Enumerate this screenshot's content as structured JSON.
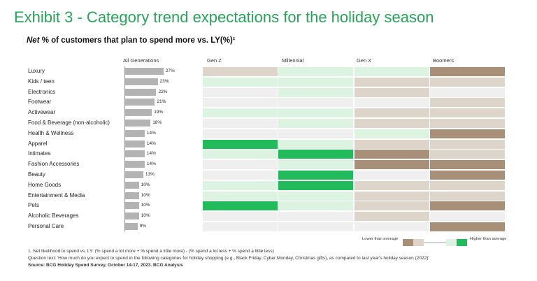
{
  "title": "Exhibit 3 - Category trend expectations for the holiday season",
  "subtitle_emphasis": "Net",
  "subtitle_rest": "% of customers that plan to spend more vs. LY(%)¹",
  "colors": {
    "title": "#29a35a",
    "bar": "#b3b3b3",
    "lower_strong": "#a89078",
    "lower_mild": "#ddd4ca",
    "neutral": "#efefef",
    "higher_mild": "#dcf3e2",
    "higher_strong": "#21bb5b"
  },
  "chart_data": {
    "type": "bar",
    "title": "Net % of customers that plan to spend more vs. LY(%)¹",
    "ylabel": "All Generations",
    "xlim": [
      0,
      30
    ],
    "categories": [
      "Luxury",
      "Kids / teen",
      "Electronics",
      "Footwear",
      "Activewear",
      "Food & Beverage (non-alcoholic)",
      "Health & Wellness",
      "Apparel",
      "Intimates",
      "Fashion Accessories",
      "Beauty",
      "Home Goods",
      "Entertainment & Media",
      "Pets",
      "Alcoholic Beverages",
      "Personal Care"
    ],
    "values": [
      27,
      23,
      22,
      21,
      19,
      18,
      14,
      14,
      14,
      14,
      13,
      10,
      10,
      10,
      10,
      9
    ],
    "value_labels": [
      "27%",
      "23%",
      "22%",
      "21%",
      "19%",
      "18%",
      "14%",
      "14%",
      "14%",
      "14%",
      "13%",
      "10%",
      "10%",
      "10%",
      "10%",
      "9%"
    ],
    "heatmap": {
      "scale": "-2 = much lower than average, 0 = around average, 2 = much higher than average",
      "columns": [
        "Gen Z",
        "Millennial",
        "Gen X",
        "Boomers"
      ],
      "rows": [
        [
          -1,
          1,
          1,
          -2
        ],
        [
          1,
          1,
          -1,
          -1
        ],
        [
          0,
          1,
          -1,
          0
        ],
        [
          0,
          0,
          0,
          -1
        ],
        [
          1,
          1,
          -1,
          -1
        ],
        [
          0,
          1,
          -1,
          -1
        ],
        [
          0,
          0,
          1,
          -2
        ],
        [
          2,
          1,
          -1,
          -1
        ],
        [
          1,
          2,
          -2,
          -1
        ],
        [
          0,
          1,
          -2,
          -2
        ],
        [
          0,
          2,
          0,
          -2
        ],
        [
          1,
          2,
          -1,
          -1
        ],
        [
          1,
          1,
          -1,
          -1
        ],
        [
          2,
          1,
          -1,
          -2
        ],
        [
          0,
          0,
          -1,
          0
        ],
        [
          0,
          0,
          0,
          -2
        ]
      ]
    }
  },
  "all_generations_label": "All Generations",
  "legend": {
    "lower": "Lower than average",
    "higher": "Higher than average"
  },
  "footnotes": {
    "note1": "1. Net likelihood to spend vs. LY: (% spend a lot more + % spend a little more) - (% spend a lot less + % spend a little less)",
    "question": "Question text: 'How much do you expect to spend in the following categories for holiday shopping (e.g., Black Friday, Cyber Monday, Christmas gifts), as compared to last year's holiday season (2022)'",
    "source": "Source: BCG Holiday Spend Survey, October 14-17, 2023. BCG Analysis"
  }
}
